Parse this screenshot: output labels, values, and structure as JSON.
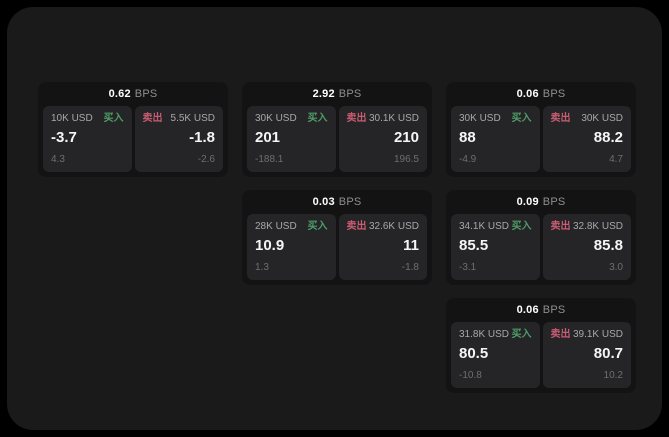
{
  "labels": {
    "buy": "买入",
    "sell": "卖出",
    "bps_suffix": "BPS"
  },
  "colors": {
    "buy": "#4f9d69",
    "sell": "#c75c72",
    "value_text": "#f5f5f5",
    "size_text": "#a8a8a8",
    "sub_text": "#6e6e6e",
    "card_bg": "#131313",
    "panel_bg": "#252527",
    "window_bg": "#1a1a1a"
  },
  "cards": [
    {
      "row": 1,
      "col": 1,
      "bps": "0.62",
      "buy": {
        "size": "10K USD",
        "value": "-3.7",
        "sub": "4.3"
      },
      "sell": {
        "size": "5.5K USD",
        "value": "-1.8",
        "sub": "-2.6"
      }
    },
    {
      "row": 1,
      "col": 2,
      "bps": "2.92",
      "buy": {
        "size": "30K USD",
        "value": "201",
        "sub": "-188.1"
      },
      "sell": {
        "size": "30.1K USD",
        "value": "210",
        "sub": "196.5"
      }
    },
    {
      "row": 1,
      "col": 3,
      "bps": "0.06",
      "buy": {
        "size": "30K USD",
        "value": "88",
        "sub": "-4.9"
      },
      "sell": {
        "size": "30K USD",
        "value": "88.2",
        "sub": "4.7"
      }
    },
    {
      "row": 2,
      "col": 2,
      "bps": "0.03",
      "buy": {
        "size": "28K USD",
        "value": "10.9",
        "sub": "1.3"
      },
      "sell": {
        "size": "32.6K USD",
        "value": "11",
        "sub": "-1.8"
      }
    },
    {
      "row": 2,
      "col": 3,
      "bps": "0.09",
      "buy": {
        "size": "34.1K USD",
        "value": "85.5",
        "sub": "-3.1"
      },
      "sell": {
        "size": "32.8K USD",
        "value": "85.8",
        "sub": "3.0"
      }
    },
    {
      "row": 3,
      "col": 3,
      "bps": "0.06",
      "buy": {
        "size": "31.8K USD",
        "value": "80.5",
        "sub": "-10.8"
      },
      "sell": {
        "size": "39.1K USD",
        "value": "80.7",
        "sub": "10.2"
      }
    }
  ]
}
